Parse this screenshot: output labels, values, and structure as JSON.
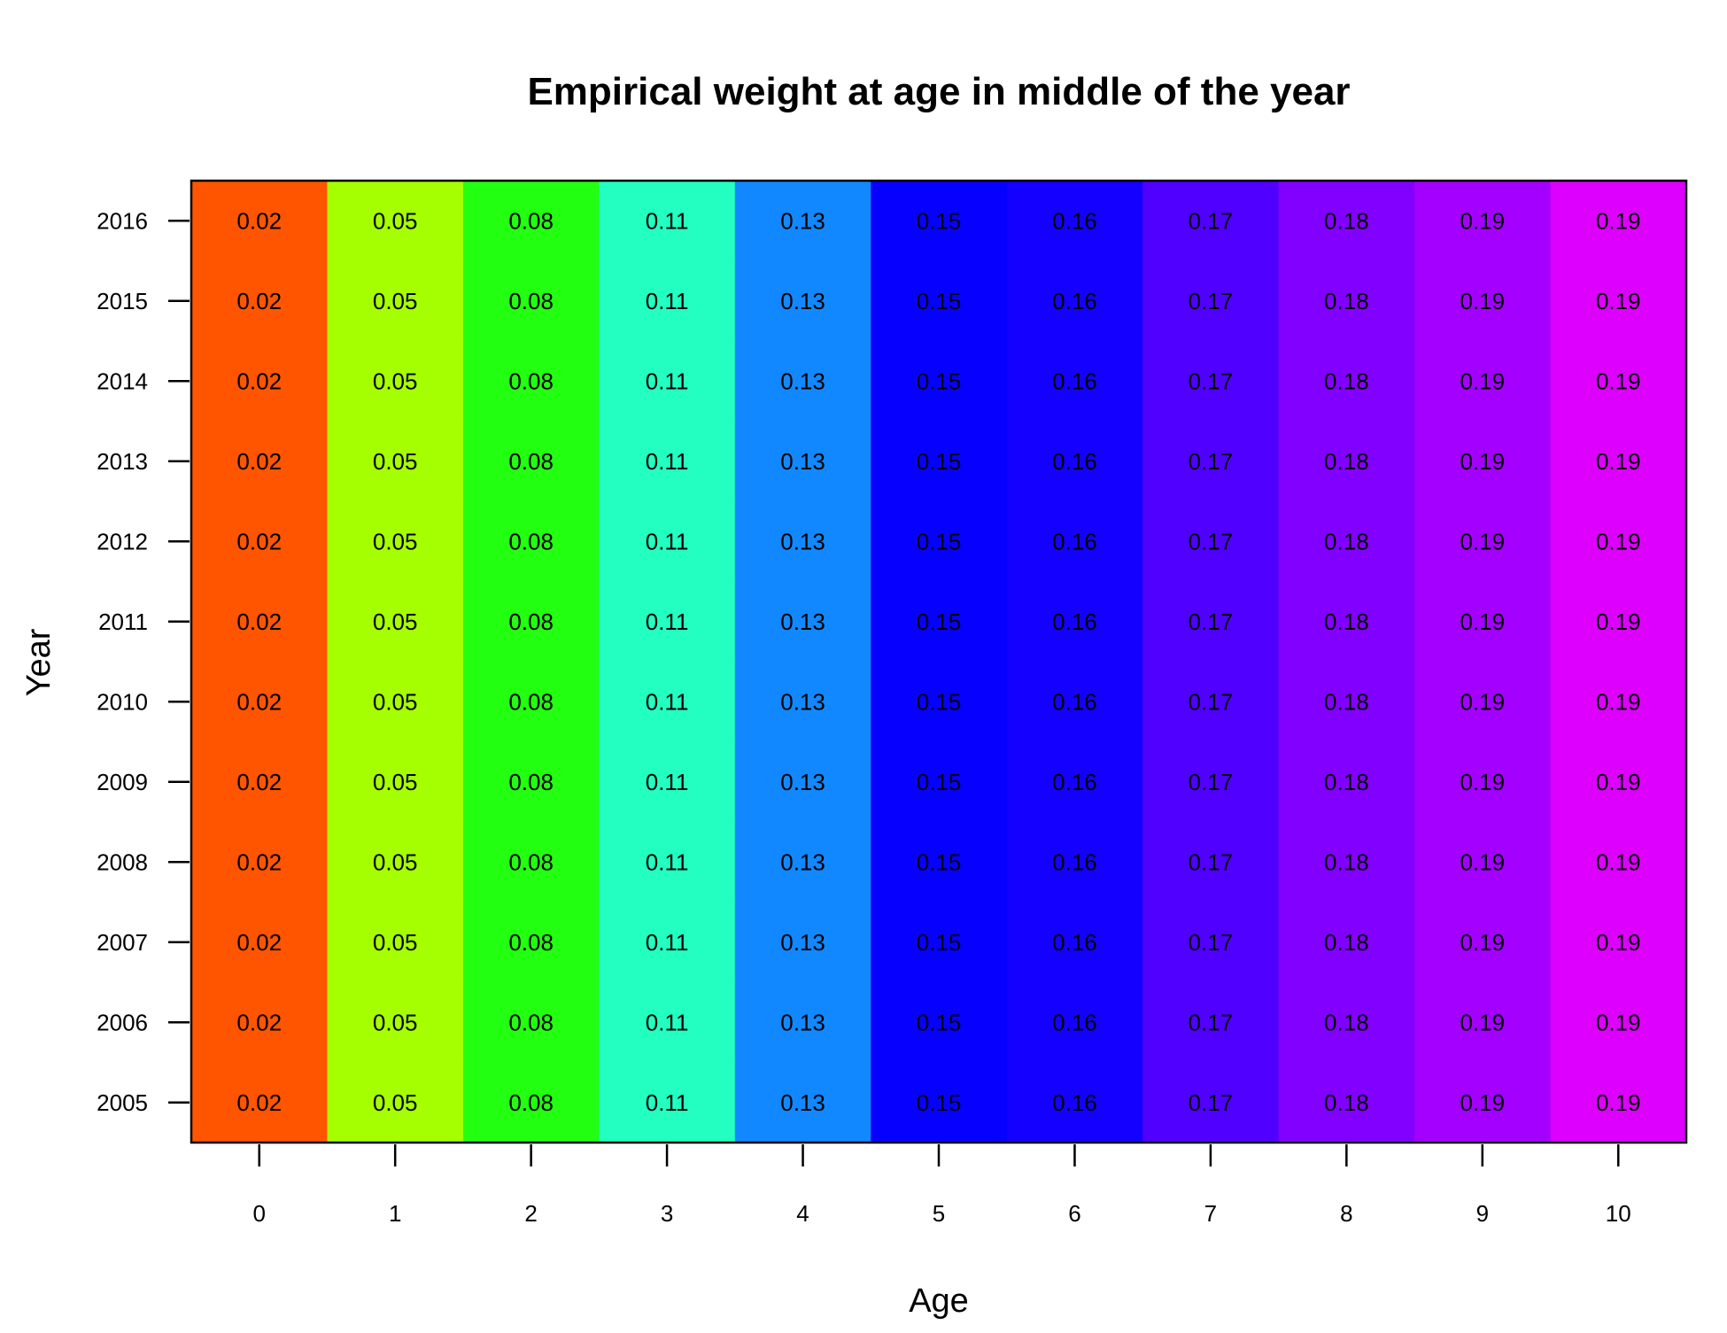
{
  "chart_data": {
    "type": "heatmap",
    "title": "Empirical weight at age in middle of the year",
    "xlabel": "Age",
    "ylabel": "Year",
    "x": [
      0,
      1,
      2,
      3,
      4,
      5,
      6,
      7,
      8,
      9,
      10
    ],
    "y": [
      2005,
      2006,
      2007,
      2008,
      2009,
      2010,
      2011,
      2012,
      2013,
      2014,
      2015,
      2016
    ],
    "column_values": [
      0.02,
      0.05,
      0.08,
      0.11,
      0.13,
      0.15,
      0.16,
      0.17,
      0.18,
      0.19,
      0.19
    ],
    "column_colors": [
      "#ff5500",
      "#a6ff00",
      "#22ff11",
      "#22ffc1",
      "#1188ff",
      "#0500ff",
      "#1300ff",
      "#4f00ff",
      "#8200ff",
      "#a300ff",
      "#dd00ff"
    ],
    "values_note_constant_across_years": true,
    "grid": false,
    "legend": "none"
  }
}
